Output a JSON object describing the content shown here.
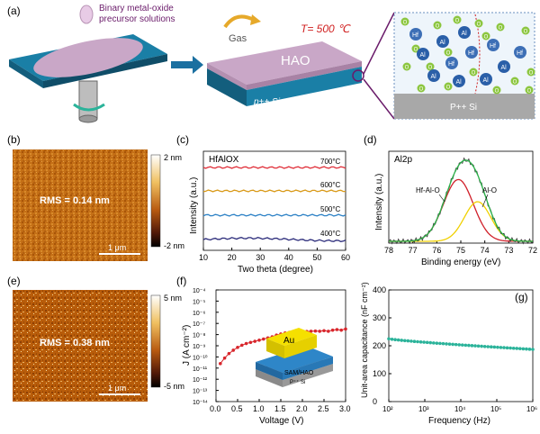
{
  "panel_labels": {
    "a": "(a)",
    "b": "(b)",
    "c": "(c)",
    "d": "(d)",
    "e": "(e)",
    "f": "(f)",
    "g": "(g)"
  },
  "panel_a": {
    "precursor_line1": "Binary metal-oxide",
    "precursor_line2": "precursor solutions",
    "gas_label": "Gas",
    "temperature_label": "T= 500 ℃",
    "film_label": "HAO",
    "substrate_label": "p++ Si",
    "zoom_substrate_label": "P++ Si",
    "hf_label": "Hf",
    "al_label": "Al",
    "o_label": "O",
    "colors": {
      "substrate": "#1a7fa6",
      "film": "#c9a7c7",
      "hf_atom": "#3d6fb6",
      "al_atom": "#2a5fa8",
      "o_atom": "#8cc63f"
    }
  },
  "panel_b": {
    "rms_label": "RMS = 0.14 nm",
    "scale_bar": "1 μm",
    "colorbar_max": "2 nm",
    "colorbar_min": "-2 nm"
  },
  "panel_e": {
    "rms_label": "RMS = 0.38 nm",
    "scale_bar": "1 μm",
    "colorbar_max": "5 nm",
    "colorbar_min": "-5 nm"
  },
  "panel_f_inset": {
    "top": "Au",
    "mid": "SAM/HAO",
    "bottom": "P⁺⁺ Si"
  },
  "chart_data": [
    {
      "id": "c",
      "type": "line",
      "title": "HfAlOX",
      "xlabel": "Two theta (degree)",
      "ylabel": "Intensity (a.u.)",
      "xlim": [
        10,
        60
      ],
      "xticks": [
        10,
        20,
        30,
        40,
        50,
        60
      ],
      "series": [
        {
          "name": "700°C",
          "color": "#e0303a",
          "offset": 3
        },
        {
          "name": "600°C",
          "color": "#d99a1a",
          "offset": 2
        },
        {
          "name": "500°C",
          "color": "#2e82c6",
          "offset": 1
        },
        {
          "name": "400°C",
          "color": "#2b2b7a",
          "offset": 0
        }
      ]
    },
    {
      "id": "d",
      "type": "line",
      "title": "Al2p",
      "xlabel": "Binding energy (eV)",
      "ylabel": "Intensity (a.u.)",
      "xlim": [
        78,
        72
      ],
      "xticks": [
        78,
        77,
        76,
        75,
        74,
        73,
        72
      ],
      "peaks": [
        {
          "name": "Hf-Al-O",
          "center": 75.1,
          "height": 0.78,
          "width": 0.62,
          "color": "#d0202a"
        },
        {
          "name": "Al-O",
          "center": 74.3,
          "height": 0.5,
          "width": 0.55,
          "color": "#f0d000"
        }
      ]
    },
    {
      "id": "f",
      "type": "scatter",
      "xlabel": "Voltage (V)",
      "ylabel": "J (A cm⁻²)",
      "xlim": [
        0,
        3
      ],
      "ylim_log": [
        -14,
        -4
      ],
      "xticks": [
        0.0,
        0.5,
        1.0,
        1.5,
        2.0,
        2.5,
        3.0
      ],
      "ytick_labels": [
        "10⁻¹⁴",
        "10⁻¹³",
        "10⁻¹²",
        "10⁻¹¹",
        "10⁻¹⁰",
        "10⁻⁹",
        "10⁻⁸",
        "10⁻⁷",
        "10⁻⁶",
        "10⁻⁵",
        "10⁻⁴"
      ],
      "x": [
        0.1,
        0.2,
        0.3,
        0.4,
        0.5,
        0.6,
        0.7,
        0.8,
        0.9,
        1.0,
        1.1,
        1.2,
        1.3,
        1.4,
        1.5,
        1.6,
        1.7,
        1.8,
        1.9,
        2.0,
        2.1,
        2.2,
        2.3,
        2.4,
        2.5,
        2.6,
        2.7,
        2.8,
        2.9,
        3.0
      ],
      "log_values": [
        -10.6,
        -10.1,
        -9.7,
        -9.4,
        -9.15,
        -8.95,
        -8.8,
        -8.7,
        -8.6,
        -8.5,
        -8.4,
        -8.3,
        -8.2,
        -8.05,
        -7.95,
        -7.85,
        -7.8,
        -7.75,
        -7.7,
        -7.75,
        -7.72,
        -7.7,
        -7.68,
        -7.7,
        -7.65,
        -7.7,
        -7.6,
        -7.55,
        -7.6,
        -7.5
      ],
      "color": "#d8262c"
    },
    {
      "id": "g",
      "type": "scatter",
      "xlabel": "Frequency (Hz)",
      "ylabel": "Unit-area capacitance (nF cm⁻²)",
      "xlim_log": [
        2,
        6
      ],
      "ylim": [
        0,
        400
      ],
      "yticks": [
        0,
        100,
        200,
        300,
        400
      ],
      "xtick_labels": [
        "10²",
        "10³",
        "10⁴",
        "10⁵",
        "10⁶"
      ],
      "start_value": 225,
      "end_value": 187,
      "color": "#2bb39a"
    }
  ]
}
